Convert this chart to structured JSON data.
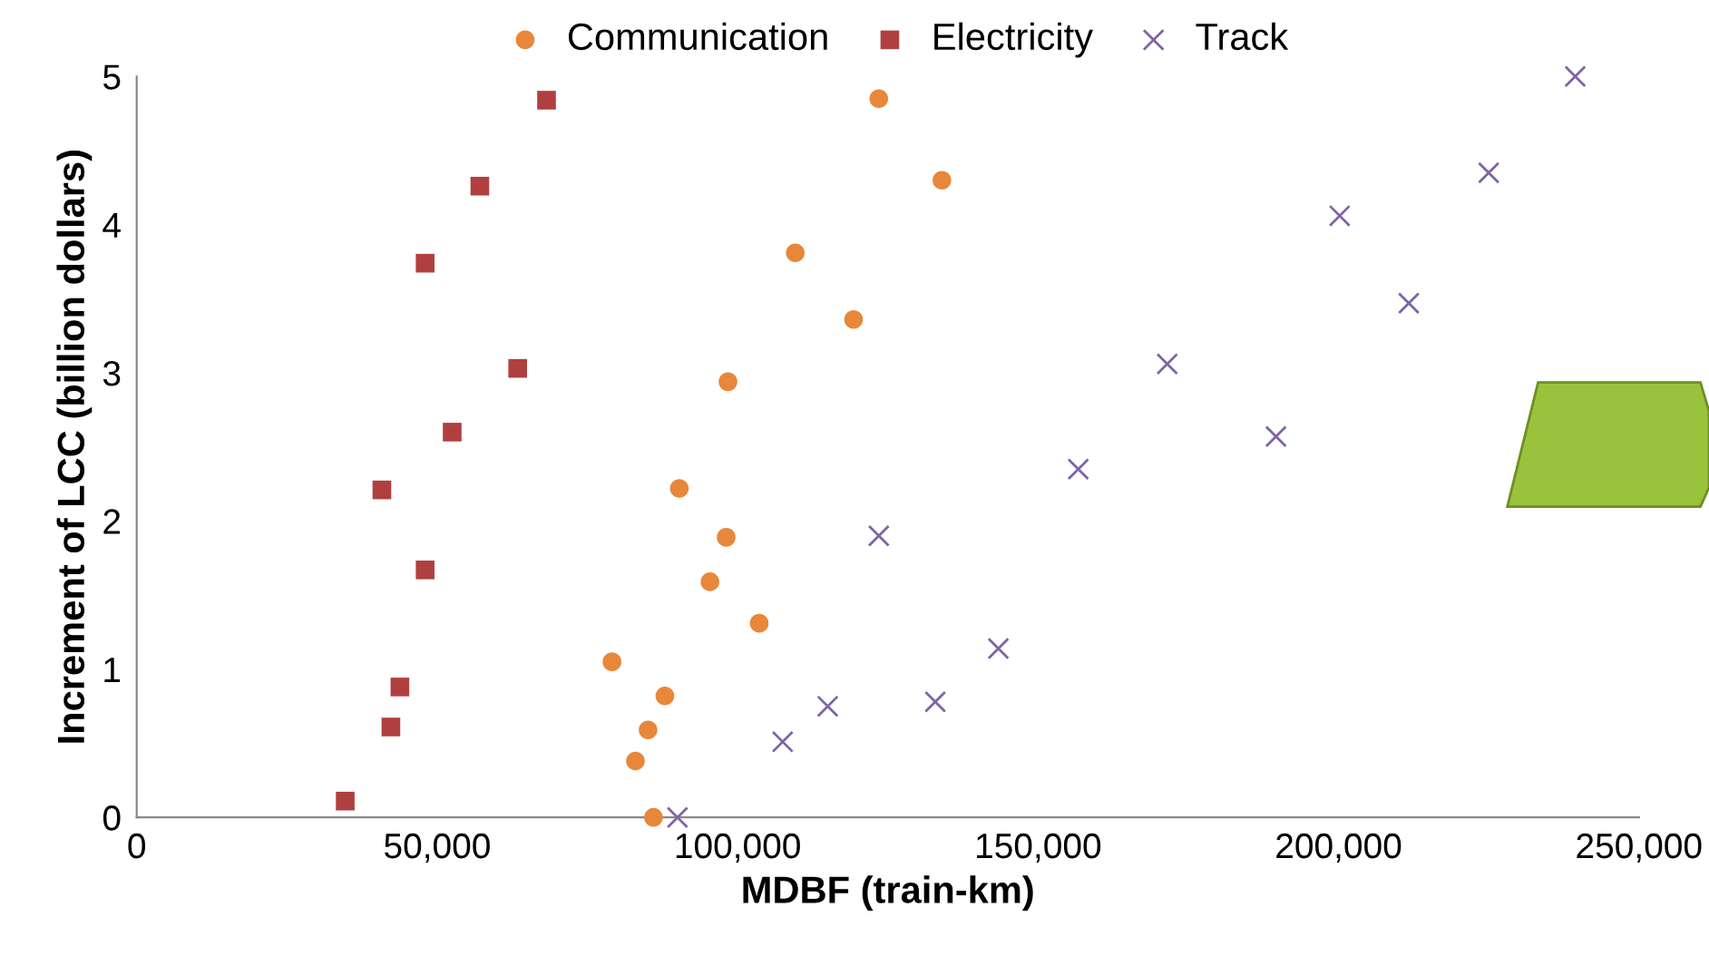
{
  "chart_data": {
    "type": "scatter",
    "xlabel": "MDBF (train-km)",
    "ylabel": "Increment of LCC (billion dollars)",
    "xlim": [
      0,
      250000
    ],
    "ylim": [
      0,
      5
    ],
    "xticks": [
      {
        "value": 0,
        "label": "0"
      },
      {
        "value": 50000,
        "label": "50,000"
      },
      {
        "value": 100000,
        "label": "100,000"
      },
      {
        "value": 150000,
        "label": "150,000"
      },
      {
        "value": 200000,
        "label": "200,000"
      },
      {
        "value": 250000,
        "label": "250,000"
      }
    ],
    "yticks": [
      0,
      1,
      2,
      3,
      4,
      5
    ],
    "grid": false,
    "legend": "top",
    "series": [
      {
        "name": "Communication",
        "color": "#e8873a",
        "marker": "circle",
        "x": [
          123500,
          134000,
          109600,
          119300,
          98400,
          90300,
          98100,
          95400,
          103600,
          79100,
          87900,
          85100,
          83000,
          86000
        ],
        "values": [
          4.85,
          4.3,
          3.81,
          3.36,
          2.94,
          2.22,
          1.89,
          1.59,
          1.31,
          1.05,
          0.82,
          0.59,
          0.38,
          0.0
        ]
      },
      {
        "name": "Electricity",
        "color": "#b04040",
        "marker": "square",
        "x": [
          68200,
          57100,
          48000,
          63400,
          52500,
          40800,
          48000,
          43800,
          42300,
          34700
        ],
        "values": [
          4.84,
          4.26,
          3.74,
          3.03,
          2.6,
          2.21,
          1.67,
          0.88,
          0.61,
          0.11
        ]
      },
      {
        "name": "Track",
        "color": "#7f64a5",
        "marker": "cross",
        "x": [
          239400,
          225000,
          200200,
          211700,
          171500,
          189600,
          156700,
          123500,
          143400,
          132900,
          115000,
          107500,
          90000
        ],
        "values": [
          5.0,
          4.35,
          4.06,
          3.47,
          3.06,
          2.57,
          2.35,
          1.9,
          1.14,
          0.78,
          0.75,
          0.51,
          0.0
        ]
      }
    ]
  }
}
